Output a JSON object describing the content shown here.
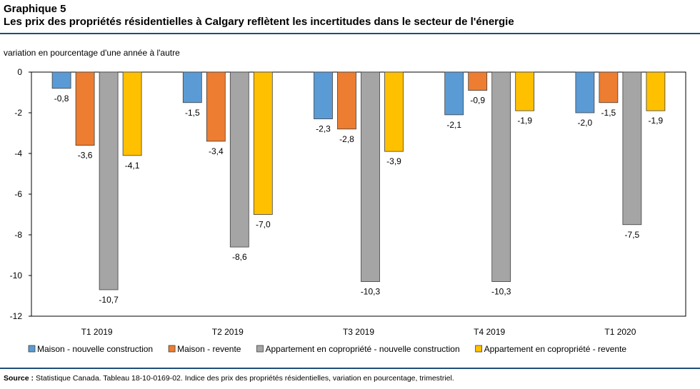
{
  "header": {
    "graph_number": "Graphique 5",
    "title": "Les prix des propriétés résidentielles à Calgary reflètent les incertitudes dans le secteur de l'énergie"
  },
  "chart_data": {
    "type": "bar",
    "title": "Les prix des propriétés résidentielles à Calgary reflètent les incertitudes dans le secteur de l'énergie",
    "ylabel": "variation en pourcentage d'une année à l'autre",
    "xlabel": "",
    "categories": [
      "T1 2019",
      "T2 2019",
      "T3 2019",
      "T4 2019",
      "T1 2020"
    ],
    "ylim": [
      -12,
      0
    ],
    "yticks": [
      0,
      -2,
      -4,
      -6,
      -8,
      -10,
      -12
    ],
    "grid": false,
    "legend_position": "bottom",
    "series": [
      {
        "name": "Maison - nouvelle construction",
        "color": "#5b9bd5",
        "values": [
          -0.8,
          -1.5,
          -2.3,
          -2.1,
          -2.0
        ],
        "labels": [
          "-0,8",
          "-1,5",
          "-2,3",
          "-2,1",
          "-2,0"
        ]
      },
      {
        "name": "Maison - revente",
        "color": "#ed7d31",
        "values": [
          -3.6,
          -3.4,
          -2.8,
          -0.9,
          -1.5
        ],
        "labels": [
          "-3,6",
          "-3,4",
          "-2,8",
          "-0,9",
          "-1,5"
        ]
      },
      {
        "name": "Appartement en copropriété - nouvelle construction",
        "color": "#a5a5a5",
        "values": [
          -10.7,
          -8.6,
          -10.3,
          -10.3,
          -7.5
        ],
        "labels": [
          "-10,7",
          "-8,6",
          "-10,3",
          "-10,3",
          "-7,5"
        ]
      },
      {
        "name": "Appartement en copropriété - revente",
        "color": "#ffc000",
        "values": [
          -4.1,
          -7.0,
          -3.9,
          -1.9,
          -1.9
        ],
        "labels": [
          "-4,1",
          "-7,0",
          "-3,9",
          "-1,9",
          "-1,9"
        ]
      }
    ]
  },
  "source": {
    "label": "Source :",
    "text": "Statistique Canada. Tableau 18-10-0169-02. Indice des prix des propriétés résidentielles, variation en pourcentage, trimestriel."
  }
}
